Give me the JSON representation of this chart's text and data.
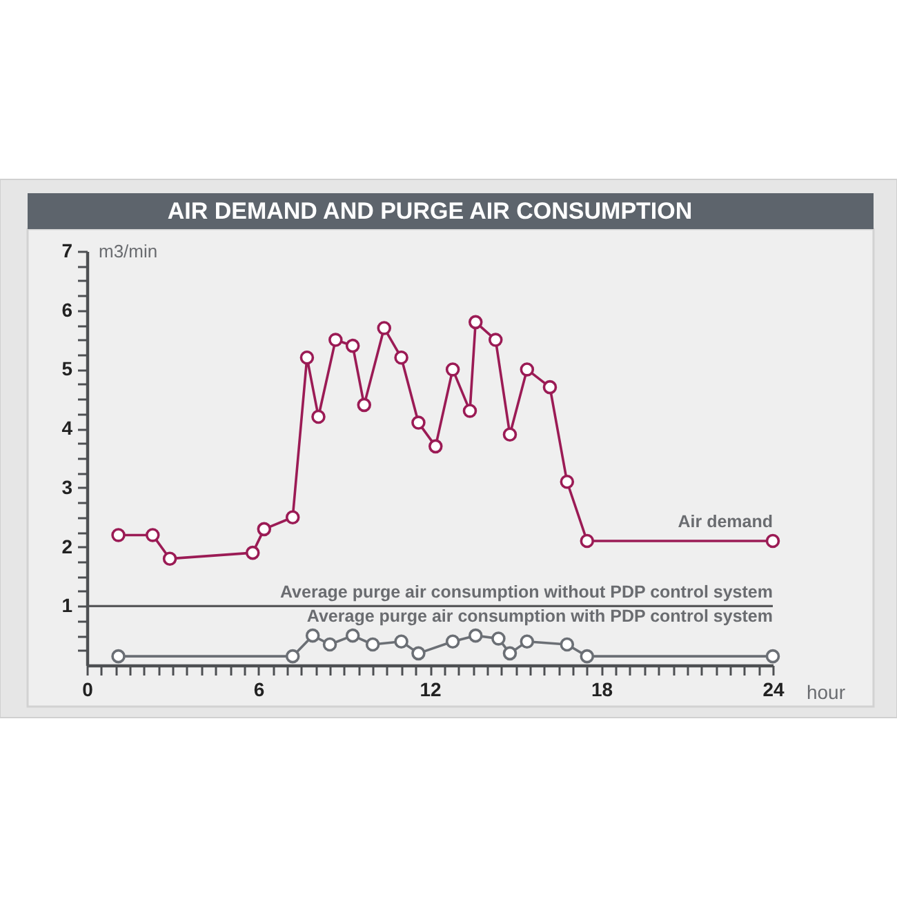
{
  "chart_data": {
    "type": "line",
    "title": "AIR DEMAND AND PURGE AIR CONSUMPTION",
    "xlabel": "hour",
    "ylabel": "m3/min",
    "xlim": [
      0,
      24
    ],
    "xticks": [
      0,
      {
        "value": 0.5,
        "label": null
      },
      {
        "value": 1,
        "label": null
      },
      {
        "value": 1.5,
        "label": null
      },
      {
        "value": 2,
        "label": null
      },
      {
        "value": 2.5,
        "label": null
      },
      {
        "value": 3,
        "label": null
      },
      {
        "value": 3.5,
        "label": null
      },
      {
        "value": 4,
        "label": null
      },
      {
        "value": 4.5,
        "label": null
      },
      {
        "value": 5,
        "label": null
      },
      {
        "value": 5.5,
        "label": null
      },
      6,
      {
        "value": 6.5,
        "label": null
      },
      {
        "value": 7,
        "label": null
      },
      {
        "value": 7.5,
        "label": null
      },
      {
        "value": 8,
        "label": null
      },
      {
        "value": 8.5,
        "label": null
      },
      {
        "value": 9,
        "label": null
      },
      {
        "value": 9.5,
        "label": null
      },
      {
        "value": 10,
        "label": null
      },
      {
        "value": 10.5,
        "label": null
      },
      {
        "value": 11,
        "label": null
      },
      {
        "value": 11.5,
        "label": null
      },
      12,
      {
        "value": 12.5,
        "label": null
      },
      {
        "value": 13,
        "label": null
      },
      {
        "value": 13.5,
        "label": null
      },
      {
        "value": 14,
        "label": null
      },
      {
        "value": 14.5,
        "label": null
      },
      {
        "value": 15,
        "label": null
      },
      {
        "value": 15.5,
        "label": null
      },
      {
        "value": 16,
        "label": null
      },
      {
        "value": 16.5,
        "label": null
      },
      {
        "value": 17,
        "label": null
      },
      {
        "value": 17.5,
        "label": null
      },
      18,
      {
        "value": 18.5,
        "label": null
      },
      {
        "value": 19,
        "label": null
      },
      {
        "value": 19.5,
        "label": null
      },
      {
        "value": 20,
        "label": null
      },
      {
        "value": 20.5,
        "label": null
      },
      {
        "value": 21,
        "label": null
      },
      {
        "value": 21.5,
        "label": null
      },
      {
        "value": 22,
        "label": null
      },
      {
        "value": 22.5,
        "label": null
      },
      {
        "value": 23,
        "label": null
      },
      {
        "value": 23.5,
        "label": null
      },
      24
    ],
    "ylim": [
      0,
      7
    ],
    "yticks": [
      {
        "value": 0.25,
        "label": null
      },
      {
        "value": 0.5,
        "label": null
      },
      {
        "value": 0.75,
        "label": null
      },
      1,
      {
        "value": 1.25,
        "label": null
      },
      {
        "value": 1.5,
        "label": null
      },
      {
        "value": 1.75,
        "label": null
      },
      2,
      {
        "value": 2.25,
        "label": null
      },
      {
        "value": 2.5,
        "label": null
      },
      {
        "value": 2.75,
        "label": null
      },
      3,
      {
        "value": 3.25,
        "label": null
      },
      {
        "value": 3.5,
        "label": null
      },
      {
        "value": 3.75,
        "label": null
      },
      4,
      {
        "value": 4.25,
        "label": null
      },
      {
        "value": 4.5,
        "label": null
      },
      {
        "value": 4.75,
        "label": null
      },
      5,
      {
        "value": 5.25,
        "label": null
      },
      {
        "value": 5.5,
        "label": null
      },
      {
        "value": 5.75,
        "label": null
      },
      6,
      {
        "value": 6.25,
        "label": null
      },
      {
        "value": 6.5,
        "label": null
      },
      {
        "value": 6.75,
        "label": null
      },
      7
    ],
    "marker": "circle",
    "series": [
      {
        "name": "Air demand",
        "color": "#9b1b55",
        "x": [
          1.1,
          2.3,
          2.9,
          5.8,
          6.2,
          7.2,
          7.7,
          8.1,
          8.7,
          9.3,
          9.7,
          10.4,
          11.0,
          11.6,
          12.2,
          12.8,
          13.4,
          13.6,
          14.3,
          14.8,
          15.4,
          16.2,
          16.8,
          17.5,
          24
        ],
        "values": [
          2.2,
          2.2,
          1.8,
          1.9,
          2.3,
          2.5,
          5.2,
          4.2,
          5.5,
          5.4,
          4.4,
          5.7,
          5.2,
          4.1,
          3.7,
          5.0,
          4.3,
          5.8,
          5.5,
          3.9,
          5.0,
          4.7,
          3.1,
          2.1,
          2.1
        ]
      },
      {
        "name": "Average purge air consumption with PDP control system",
        "color": "#6b6f75",
        "x": [
          1.1,
          7.2,
          7.9,
          8.5,
          9.3,
          10.0,
          11.0,
          11.6,
          12.8,
          13.6,
          14.4,
          14.8,
          15.4,
          16.8,
          17.5,
          24
        ],
        "values": [
          0.15,
          0.15,
          0.5,
          0.35,
          0.5,
          0.35,
          0.4,
          0.2,
          0.4,
          0.5,
          0.45,
          0.2,
          0.4,
          0.35,
          0.15,
          0.15
        ]
      }
    ],
    "ref_lines": [
      {
        "axis": "y",
        "value": 1,
        "label": "Average purge air consumption without PDP control system",
        "color": "#58595b"
      }
    ]
  }
}
